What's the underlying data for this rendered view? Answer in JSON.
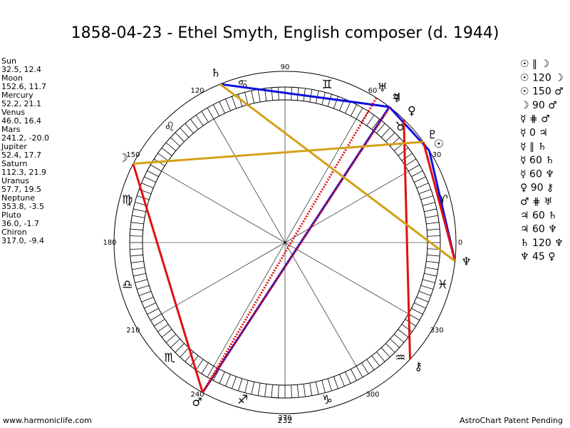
{
  "title": "1858-04-23 - Ethel Smyth, English composer (d. 1944)",
  "planets": [
    {
      "name": "Sun",
      "coords": "32.5, 12.4",
      "glyph": "☉"
    },
    {
      "name": "Moon",
      "coords": "152.6, 11.7",
      "glyph": "☽"
    },
    {
      "name": "Mercury",
      "coords": "52.2, 21.1",
      "glyph": "☿"
    },
    {
      "name": "Venus",
      "coords": "46.0, 16.4",
      "glyph": "♀"
    },
    {
      "name": "Mars",
      "coords": "241.2, -20.0",
      "glyph": "♂"
    },
    {
      "name": "Jupiter",
      "coords": "52.4, 17.7",
      "glyph": "♃"
    },
    {
      "name": "Saturn",
      "coords": "112.3, 21.9",
      "glyph": "♄"
    },
    {
      "name": "Uranus",
      "coords": "57.7, 19.5",
      "glyph": "♅"
    },
    {
      "name": "Neptune",
      "coords": "353.8, -3.5",
      "glyph": "♆"
    },
    {
      "name": "Pluto",
      "coords": "36.0, -1.7",
      "glyph": "♇"
    },
    {
      "name": "Chiron",
      "coords": "317.0, -9.4",
      "glyph": "⚷"
    }
  ],
  "degree_labels": [
    0,
    30,
    60,
    90,
    120,
    150,
    180,
    210,
    240,
    270,
    300,
    330
  ],
  "signs": [
    "♈",
    "♉",
    "♊",
    "♋",
    "♌",
    "♍",
    "♎",
    "♏",
    "♐",
    "♑",
    "♒",
    "♓"
  ],
  "aspects": [
    "☉ ∥ ☽",
    "☉ 120 ☽",
    "☉ 150 ♂",
    "☽ 90 ♂",
    "☿ ⋕ ♂",
    "☿ 0 ♃",
    "☿ ∥ ♄",
    "☿ 60 ♄",
    "☿ 60 ♆",
    "♀ 90 ⚷",
    "♂ ⋕ ♅",
    "♃ 60 ♄",
    "♃ 60 ♆",
    "♄ 120 ♆",
    "♆ 45 ♀"
  ],
  "footer": {
    "left": "www.harmoniclife.com",
    "center": "232",
    "right": "AstroChart Patent Pending"
  }
}
